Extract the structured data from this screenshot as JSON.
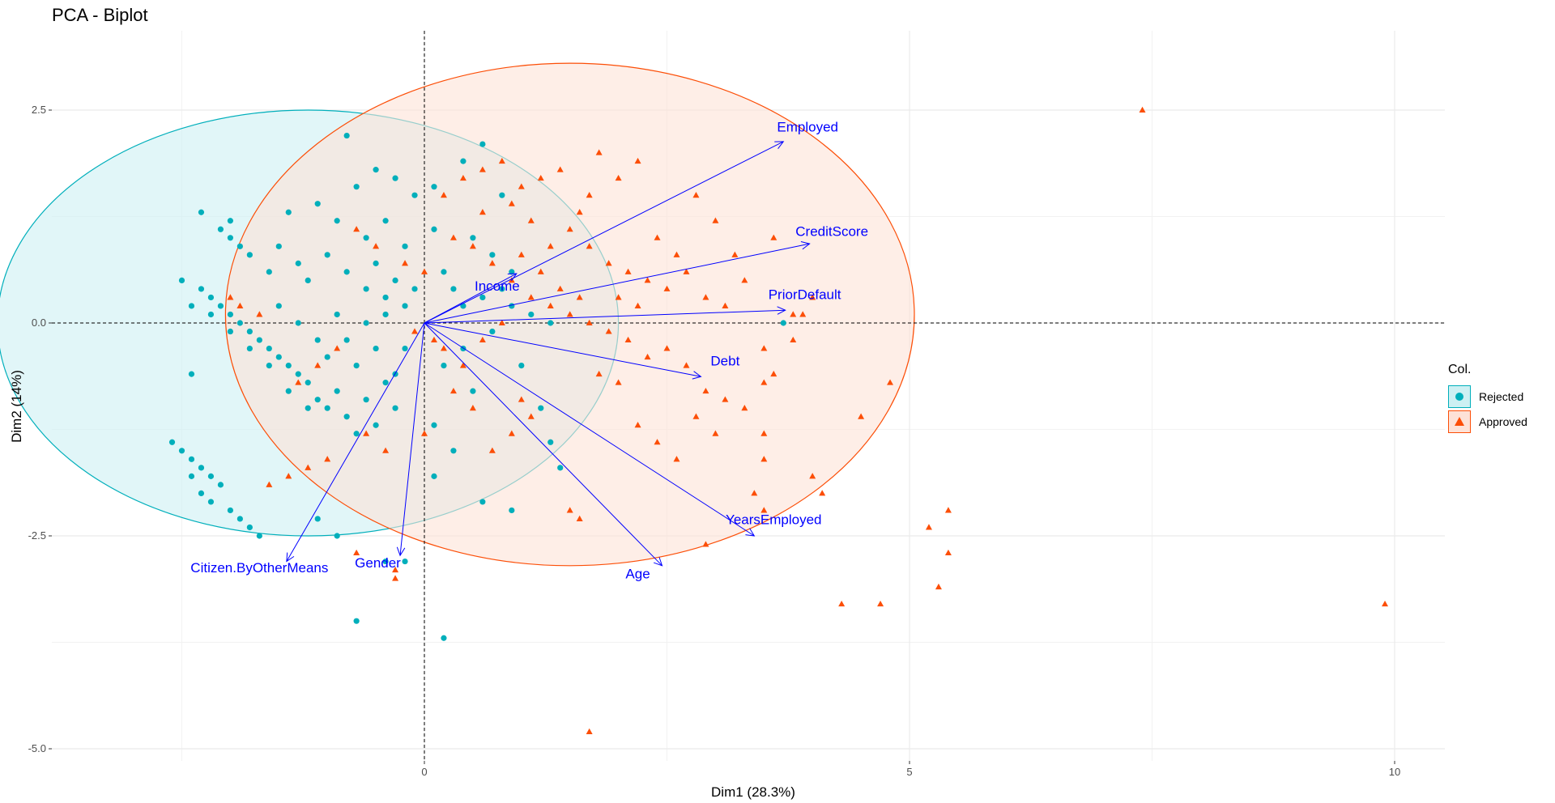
{
  "chart_data": {
    "type": "scatter",
    "title": "PCA - Biplot",
    "xlabel": "Dim1 (28.3%)",
    "ylabel": "Dim2 (14%)",
    "xlim": [
      -5.2,
      10.5
    ],
    "ylim": [
      -5.2,
      3.4
    ],
    "x_ticks": [
      0,
      5,
      10
    ],
    "y_ticks": [
      2.5,
      0.0,
      -2.5,
      -5.0
    ],
    "x_tick_labels": [
      "0",
      "5",
      "10"
    ],
    "y_tick_labels": [
      "2.5",
      "0.0",
      "-2.5",
      "-5.0"
    ],
    "grid": true,
    "legend": {
      "title": "Col.",
      "position": "right"
    },
    "colors": {
      "rejected": "#00AFBB",
      "approved": "#FC4E07",
      "vectors": "#0000FF"
    },
    "ellipses": [
      {
        "name": "Rejected",
        "color": "#00AFBB",
        "fill": "#cdf0f3",
        "cx": -1.2,
        "cy": 0.0,
        "rx": 3.2,
        "ry": 2.5
      },
      {
        "name": "Approved",
        "color": "#FC4E07",
        "fill": "#fde2d7",
        "cx": 1.5,
        "cy": 0.1,
        "rx": 3.55,
        "ry": 2.95
      }
    ],
    "vectors": [
      {
        "name": "Employed",
        "x": 3.7,
        "y": 2.13,
        "lx": 3.95,
        "ly": 2.25
      },
      {
        "name": "CreditScore",
        "x": 3.97,
        "y": 0.93,
        "lx": 4.2,
        "ly": 1.02
      },
      {
        "name": "PriorDefault",
        "x": 3.72,
        "y": 0.15,
        "lx": 3.92,
        "ly": 0.28
      },
      {
        "name": "Debt",
        "x": 2.85,
        "y": -0.63,
        "lx": 3.1,
        "ly": -0.5
      },
      {
        "name": "Income",
        "x": 0.95,
        "y": 0.58,
        "lx": 0.75,
        "ly": 0.38
      },
      {
        "name": "YearsEmployed",
        "x": 3.4,
        "y": -2.5,
        "lx": 3.6,
        "ly": -2.36
      },
      {
        "name": "Age",
        "x": 2.45,
        "y": -2.85,
        "lx": 2.2,
        "ly": -3.0
      },
      {
        "name": "Gender",
        "x": -0.25,
        "y": -2.73,
        "lx": -0.48,
        "ly": -2.87
      },
      {
        "name": "Citizen.ByOtherMeans",
        "x": -1.42,
        "y": -2.8,
        "lx": -1.7,
        "ly": -2.93
      }
    ],
    "series": [
      {
        "name": "Rejected",
        "shape": "circle",
        "points": [
          [
            -2.3,
            1.3
          ],
          [
            -2.1,
            1.1
          ],
          [
            -2.0,
            1.0
          ],
          [
            -1.9,
            0.9
          ],
          [
            -1.8,
            0.8
          ],
          [
            -2.0,
            1.2
          ],
          [
            -1.6,
            0.6
          ],
          [
            -1.5,
            0.9
          ],
          [
            -1.3,
            0.7
          ],
          [
            -1.2,
            0.5
          ],
          [
            -1.0,
            0.8
          ],
          [
            -0.8,
            0.6
          ],
          [
            -0.6,
            0.4
          ],
          [
            -0.5,
            0.7
          ],
          [
            -0.4,
            0.3
          ],
          [
            -0.3,
            0.5
          ],
          [
            -0.2,
            0.2
          ],
          [
            -0.1,
            0.4
          ],
          [
            -1.4,
            1.3
          ],
          [
            -1.1,
            1.4
          ],
          [
            -0.9,
            1.2
          ],
          [
            -0.7,
            1.6
          ],
          [
            -0.6,
            1.0
          ],
          [
            -0.4,
            1.2
          ],
          [
            -0.2,
            0.9
          ],
          [
            0.1,
            1.1
          ],
          [
            0.2,
            0.6
          ],
          [
            0.3,
            0.4
          ],
          [
            0.4,
            0.2
          ],
          [
            -0.8,
            2.2
          ],
          [
            -0.5,
            1.8
          ],
          [
            -0.3,
            1.7
          ],
          [
            -0.1,
            1.5
          ],
          [
            0.1,
            1.6
          ],
          [
            0.4,
            1.9
          ],
          [
            0.6,
            2.1
          ],
          [
            0.8,
            1.5
          ],
          [
            0.5,
            1.0
          ],
          [
            0.7,
            0.8
          ],
          [
            0.9,
            0.6
          ],
          [
            -2.5,
            0.5
          ],
          [
            -2.3,
            0.4
          ],
          [
            -2.2,
            0.3
          ],
          [
            -2.1,
            0.2
          ],
          [
            -2.0,
            0.1
          ],
          [
            -1.9,
            0.0
          ],
          [
            -1.8,
            -0.1
          ],
          [
            -1.7,
            -0.2
          ],
          [
            -1.6,
            -0.3
          ],
          [
            -1.5,
            -0.4
          ],
          [
            -1.4,
            -0.5
          ],
          [
            -1.3,
            -0.6
          ],
          [
            -1.2,
            -0.7
          ],
          [
            -1.1,
            -0.9
          ],
          [
            -1.0,
            -1.0
          ],
          [
            -0.9,
            -0.8
          ],
          [
            -0.8,
            -1.1
          ],
          [
            -0.7,
            -1.3
          ],
          [
            -0.6,
            -0.9
          ],
          [
            -0.5,
            -1.2
          ],
          [
            -0.4,
            -0.7
          ],
          [
            -0.3,
            -0.6
          ],
          [
            -0.2,
            -0.3
          ],
          [
            -2.4,
            0.2
          ],
          [
            -2.2,
            0.1
          ],
          [
            -2.0,
            -0.1
          ],
          [
            -1.8,
            -0.3
          ],
          [
            -1.6,
            -0.5
          ],
          [
            -1.4,
            -0.8
          ],
          [
            -1.2,
            -1.0
          ],
          [
            -1.0,
            -0.4
          ],
          [
            -0.8,
            -0.2
          ],
          [
            -0.6,
            0.0
          ],
          [
            -0.4,
            0.1
          ],
          [
            -1.5,
            0.2
          ],
          [
            -1.3,
            0.0
          ],
          [
            -1.1,
            -0.2
          ],
          [
            -0.9,
            0.1
          ],
          [
            -0.7,
            -0.5
          ],
          [
            -0.5,
            -0.3
          ],
          [
            -2.6,
            -1.4
          ],
          [
            -2.5,
            -1.5
          ],
          [
            -2.4,
            -1.6
          ],
          [
            -2.3,
            -1.7
          ],
          [
            -2.2,
            -1.8
          ],
          [
            -2.1,
            -1.9
          ],
          [
            -2.2,
            -2.1
          ],
          [
            -2.0,
            -2.2
          ],
          [
            -1.9,
            -2.3
          ],
          [
            -1.8,
            -2.4
          ],
          [
            -1.7,
            -2.5
          ],
          [
            -2.4,
            -1.8
          ],
          [
            -2.3,
            -2.0
          ],
          [
            -0.9,
            -2.5
          ],
          [
            -1.1,
            -2.3
          ],
          [
            -0.7,
            -3.5
          ],
          [
            0.2,
            -3.7
          ],
          [
            -0.2,
            -2.8
          ],
          [
            -0.4,
            -2.8
          ],
          [
            -2.4,
            -0.6
          ],
          [
            0.6,
            0.3
          ],
          [
            0.9,
            0.2
          ],
          [
            1.1,
            0.1
          ],
          [
            1.3,
            0.0
          ],
          [
            1.0,
            -0.5
          ],
          [
            1.2,
            -1.0
          ],
          [
            1.3,
            -1.4
          ],
          [
            1.4,
            -1.7
          ],
          [
            0.9,
            -2.2
          ],
          [
            0.6,
            -2.1
          ],
          [
            0.3,
            -1.5
          ],
          [
            0.1,
            -1.2
          ],
          [
            0.5,
            -0.8
          ],
          [
            0.2,
            -0.5
          ],
          [
            0.4,
            -0.3
          ],
          [
            0.7,
            -0.1
          ],
          [
            0.8,
            0.4
          ],
          [
            3.7,
            0.0
          ],
          [
            -0.3,
            -1.0
          ],
          [
            0.1,
            -1.8
          ]
        ]
      },
      {
        "name": "Approved",
        "shape": "triangle",
        "points": [
          [
            0.2,
            1.5
          ],
          [
            0.4,
            1.7
          ],
          [
            0.6,
            1.8
          ],
          [
            0.8,
            1.9
          ],
          [
            1.0,
            1.6
          ],
          [
            1.2,
            1.7
          ],
          [
            1.4,
            1.8
          ],
          [
            1.6,
            1.3
          ],
          [
            1.8,
            2.0
          ],
          [
            2.0,
            1.7
          ],
          [
            2.2,
            1.9
          ],
          [
            1.5,
            1.1
          ],
          [
            1.7,
            0.9
          ],
          [
            1.9,
            0.7
          ],
          [
            2.1,
            0.6
          ],
          [
            2.3,
            0.5
          ],
          [
            2.5,
            0.4
          ],
          [
            2.7,
            0.6
          ],
          [
            2.9,
            0.3
          ],
          [
            3.1,
            0.2
          ],
          [
            3.3,
            0.5
          ],
          [
            3.6,
            1.0
          ],
          [
            3.8,
            0.1
          ],
          [
            0.3,
            1.0
          ],
          [
            0.5,
            0.9
          ],
          [
            0.7,
            0.7
          ],
          [
            0.9,
            0.5
          ],
          [
            1.1,
            0.3
          ],
          [
            1.3,
            0.2
          ],
          [
            1.5,
            0.1
          ],
          [
            1.7,
            0.0
          ],
          [
            1.9,
            -0.1
          ],
          [
            2.1,
            -0.2
          ],
          [
            2.3,
            -0.4
          ],
          [
            2.5,
            -0.3
          ],
          [
            2.7,
            -0.5
          ],
          [
            2.9,
            -0.8
          ],
          [
            3.1,
            -0.9
          ],
          [
            3.3,
            -1.0
          ],
          [
            3.5,
            -0.3
          ],
          [
            3.5,
            -0.7
          ],
          [
            3.6,
            -0.6
          ],
          [
            1.8,
            -0.6
          ],
          [
            2.0,
            -0.7
          ],
          [
            2.2,
            -1.2
          ],
          [
            2.4,
            -1.4
          ],
          [
            2.6,
            -1.6
          ],
          [
            2.8,
            -1.1
          ],
          [
            3.0,
            -1.3
          ],
          [
            3.5,
            -1.3
          ],
          [
            3.5,
            -1.6
          ],
          [
            3.4,
            -2.0
          ],
          [
            3.5,
            -2.2
          ],
          [
            4.5,
            -1.1
          ],
          [
            4.8,
            -0.7
          ],
          [
            4.0,
            -1.8
          ],
          [
            4.1,
            -2.0
          ],
          [
            2.9,
            -2.6
          ],
          [
            1.5,
            -2.2
          ],
          [
            1.6,
            -2.3
          ],
          [
            -0.3,
            -3.0
          ],
          [
            -0.3,
            -2.9
          ],
          [
            -0.7,
            -2.7
          ],
          [
            0.0,
            -1.3
          ],
          [
            0.3,
            -0.8
          ],
          [
            0.1,
            -0.2
          ],
          [
            -0.1,
            -0.1
          ],
          [
            0.2,
            -0.3
          ],
          [
            -0.2,
            0.7
          ],
          [
            0.0,
            0.6
          ],
          [
            -0.5,
            0.9
          ],
          [
            -0.7,
            1.1
          ],
          [
            -0.9,
            -0.3
          ],
          [
            -1.1,
            -0.5
          ],
          [
            -1.3,
            -0.7
          ],
          [
            -0.6,
            -1.3
          ],
          [
            -0.4,
            -1.5
          ],
          [
            -1.0,
            -1.6
          ],
          [
            -1.2,
            -1.7
          ],
          [
            -1.4,
            -1.8
          ],
          [
            -1.6,
            -1.9
          ],
          [
            -2.0,
            0.3
          ],
          [
            -1.9,
            0.2
          ],
          [
            -1.7,
            0.1
          ],
          [
            7.4,
            2.5
          ],
          [
            9.9,
            -3.3
          ],
          [
            5.3,
            -3.1
          ],
          [
            5.4,
            -2.2
          ],
          [
            5.4,
            -2.7
          ],
          [
            5.2,
            -2.4
          ],
          [
            4.3,
            -3.3
          ],
          [
            4.7,
            -3.3
          ],
          [
            1.7,
            -4.8
          ],
          [
            1.0,
            0.8
          ],
          [
            1.2,
            0.6
          ],
          [
            1.4,
            0.4
          ],
          [
            1.6,
            0.3
          ],
          [
            0.8,
            0.0
          ],
          [
            0.6,
            -0.2
          ],
          [
            0.4,
            -0.5
          ],
          [
            1.0,
            -0.9
          ],
          [
            1.1,
            -1.1
          ],
          [
            0.9,
            -1.3
          ],
          [
            0.7,
            -1.5
          ],
          [
            0.5,
            -1.0
          ],
          [
            1.3,
            0.9
          ],
          [
            2.4,
            1.0
          ],
          [
            2.6,
            0.8
          ],
          [
            2.8,
            1.5
          ],
          [
            3.0,
            1.2
          ],
          [
            3.2,
            0.8
          ],
          [
            3.8,
            -0.2
          ],
          [
            4.0,
            0.3
          ],
          [
            3.9,
            0.1
          ],
          [
            2.0,
            0.3
          ],
          [
            2.2,
            0.2
          ],
          [
            0.6,
            1.3
          ],
          [
            0.9,
            1.4
          ],
          [
            1.1,
            1.2
          ],
          [
            1.7,
            1.5
          ]
        ]
      }
    ]
  }
}
